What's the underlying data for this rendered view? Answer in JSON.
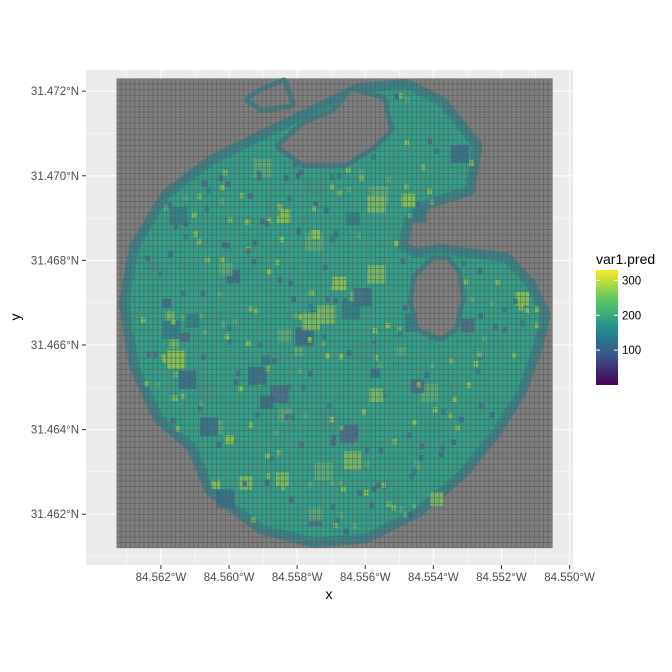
{
  "chart_data": {
    "type": "heatmap",
    "title": "",
    "xlabel": "x",
    "ylabel": "y",
    "x_ticks": [
      {
        "value": -84.562,
        "label": "84.562°W"
      },
      {
        "value": -84.56,
        "label": "84.560°W"
      },
      {
        "value": -84.558,
        "label": "84.558°W"
      },
      {
        "value": -84.556,
        "label": "84.556°W"
      },
      {
        "value": -84.554,
        "label": "84.554°W"
      },
      {
        "value": -84.552,
        "label": "84.552°W"
      },
      {
        "value": -84.55,
        "label": "84.550°W"
      }
    ],
    "y_ticks": [
      {
        "value": 31.462,
        "label": "31.462°N"
      },
      {
        "value": 31.464,
        "label": "31.464°N"
      },
      {
        "value": 31.466,
        "label": "31.466°N"
      },
      {
        "value": 31.468,
        "label": "31.468°N"
      },
      {
        "value": 31.47,
        "label": "31.470°N"
      },
      {
        "value": 31.472,
        "label": "31.472°N"
      }
    ],
    "xlim": [
      -84.5642,
      -84.5499
    ],
    "ylim": [
      31.4608,
      31.4725
    ],
    "grid_extent": {
      "x": [
        -84.5633,
        -84.5505
      ],
      "y": [
        31.4612,
        31.4723
      ]
    },
    "grid_cells": {
      "cols": 96,
      "rows": 84
    },
    "background_fill": "#7f7f7f",
    "panel_background": "#ebebeb",
    "legend": {
      "title": "var1.pred",
      "position": "right",
      "range": [
        0,
        330
      ],
      "breaks": [
        {
          "value": 100,
          "label": "100"
        },
        {
          "value": 200,
          "label": "200"
        },
        {
          "value": 300,
          "label": "300"
        }
      ],
      "colormap": "viridis",
      "colors": [
        "#440154",
        "#3b528b",
        "#21908c",
        "#5dc963",
        "#fde725"
      ]
    },
    "lake_outline": [
      [
        -84.563,
        31.467
      ],
      [
        -84.5627,
        31.4683
      ],
      [
        -84.5618,
        31.4695
      ],
      [
        -84.5605,
        31.4703
      ],
      [
        -84.559,
        31.4709
      ],
      [
        -84.5572,
        31.4716
      ],
      [
        -84.5562,
        31.472
      ],
      [
        -84.5548,
        31.4721
      ],
      [
        -84.5538,
        31.4717
      ],
      [
        -84.5528,
        31.4707
      ],
      [
        -84.553,
        31.4697
      ],
      [
        -84.5542,
        31.4694
      ],
      [
        -84.5548,
        31.469
      ],
      [
        -84.555,
        31.4683
      ],
      [
        -84.5545,
        31.4681
      ],
      [
        -84.5538,
        31.4682
      ],
      [
        -84.5529,
        31.4681
      ],
      [
        -84.5519,
        31.468
      ],
      [
        -84.5512,
        31.4674
      ],
      [
        -84.5508,
        31.4667
      ],
      [
        -84.551,
        31.466
      ],
      [
        -84.5515,
        31.4649
      ],
      [
        -84.5522,
        31.464
      ],
      [
        -84.5532,
        31.463
      ],
      [
        -84.5545,
        31.4621
      ],
      [
        -84.556,
        31.4615
      ],
      [
        -84.5575,
        31.4614
      ],
      [
        -84.559,
        31.4617
      ],
      [
        -84.5605,
        31.4626
      ],
      [
        -84.561,
        31.4636
      ],
      [
        -84.562,
        31.4643
      ],
      [
        -84.5627,
        31.4655
      ],
      [
        -84.563,
        31.467
      ]
    ],
    "cove_top": [
      [
        -84.5564,
        31.472
      ],
      [
        -84.5569,
        31.4715
      ],
      [
        -84.5578,
        31.4712
      ],
      [
        -84.5585,
        31.4707
      ],
      [
        -84.5578,
        31.4703
      ],
      [
        -84.5566,
        31.4703
      ],
      [
        -84.5558,
        31.4707
      ],
      [
        -84.5553,
        31.4711
      ],
      [
        -84.5555,
        31.4718
      ]
    ],
    "cove_right": [
      [
        -84.554,
        31.468
      ],
      [
        -84.5545,
        31.4676
      ],
      [
        -84.5546,
        31.467
      ],
      [
        -84.5544,
        31.4664
      ],
      [
        -84.5538,
        31.4662
      ],
      [
        -84.5534,
        31.4664
      ],
      [
        -84.5532,
        31.4671
      ],
      [
        -84.5533,
        31.4677
      ],
      [
        -84.5536,
        31.468
      ]
    ],
    "bay_top_left": [
      [
        -84.5584,
        31.4722
      ],
      [
        -84.559,
        31.472
      ],
      [
        -84.5594,
        31.4718
      ],
      [
        -84.559,
        31.4716
      ],
      [
        -84.5582,
        31.4717
      ]
    ]
  }
}
